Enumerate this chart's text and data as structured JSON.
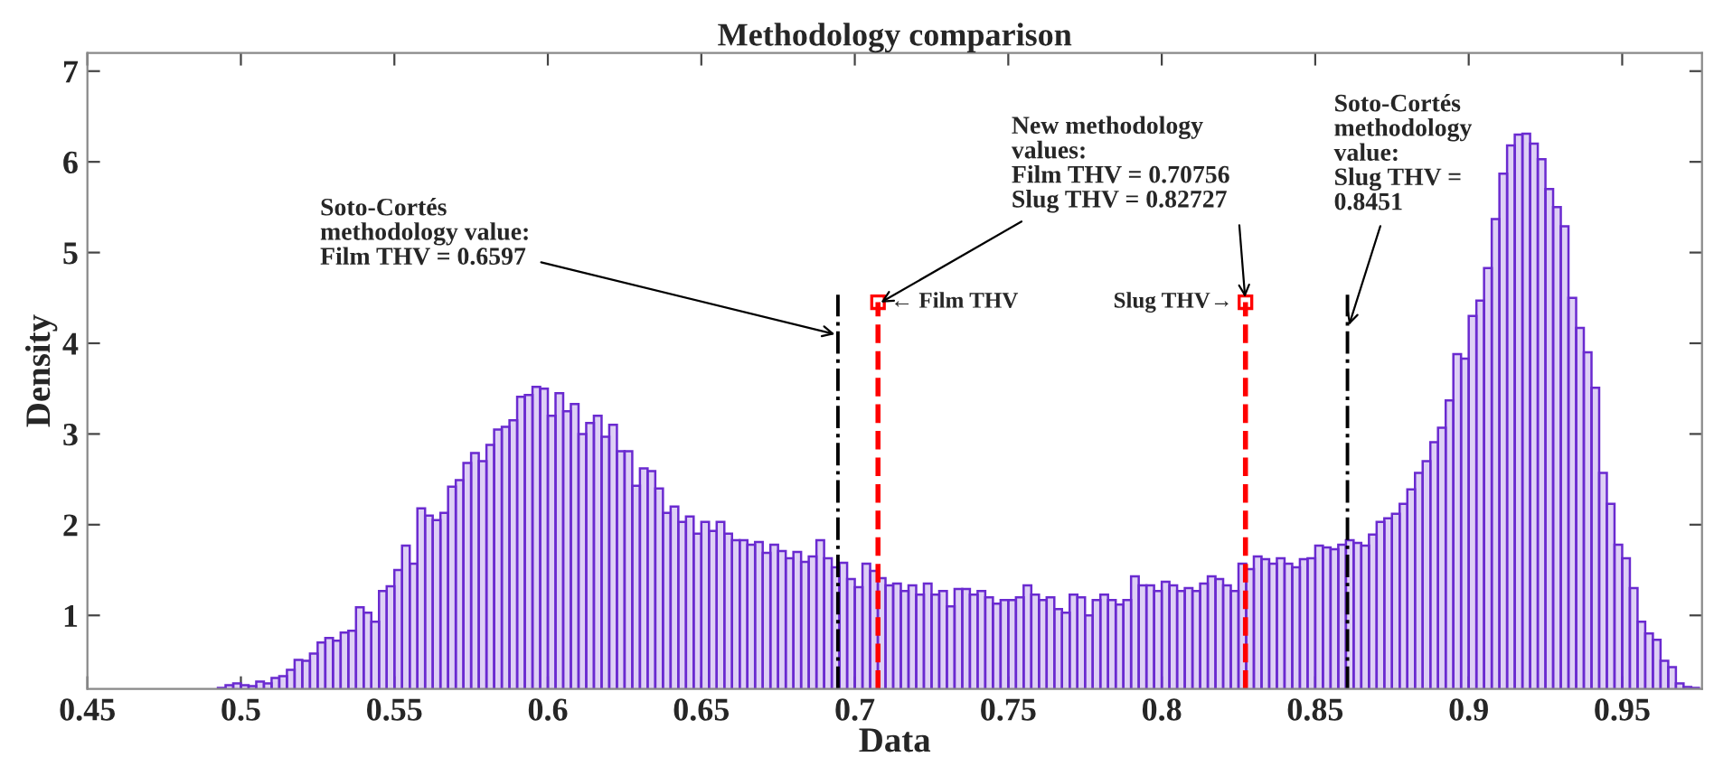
{
  "chart_data": {
    "type": "histogram",
    "title": "Methodology comparison",
    "xlabel": "Data",
    "ylabel": "Density",
    "color": "#6a2ad0",
    "bins": [
      0.4925,
      0.495,
      0.4975,
      0.5,
      0.5025,
      0.505,
      0.5075,
      0.51,
      0.5125,
      0.515,
      0.5175,
      0.52,
      0.5225,
      0.525,
      0.5275,
      0.53,
      0.5325,
      0.535,
      0.5375,
      0.54,
      0.5425,
      0.545,
      0.5475,
      0.55,
      0.5525,
      0.555,
      0.5575,
      0.56,
      0.5625,
      0.565,
      0.5675,
      0.57,
      0.5725,
      0.575,
      0.5775,
      0.58,
      0.5825,
      0.585,
      0.5875,
      0.59,
      0.5925,
      0.595,
      0.5975,
      0.6,
      0.6025,
      0.605,
      0.6075,
      0.61,
      0.6125,
      0.615,
      0.6175,
      0.62,
      0.6225,
      0.625,
      0.6275,
      0.63,
      0.6325,
      0.635,
      0.6375,
      0.64,
      0.6425,
      0.645,
      0.6475,
      0.65,
      0.6525,
      0.655,
      0.6575,
      0.66,
      0.6625,
      0.665,
      0.6675,
      0.67,
      0.6725,
      0.675,
      0.6775,
      0.68,
      0.6825,
      0.685,
      0.6875,
      0.69,
      0.6925,
      0.695,
      0.6975,
      0.7,
      0.7025,
      0.705,
      0.7075,
      0.71,
      0.7125,
      0.715,
      0.7175,
      0.72,
      0.7225,
      0.725,
      0.7275,
      0.73,
      0.7325,
      0.735,
      0.7375,
      0.74,
      0.7425,
      0.745,
      0.7475,
      0.75,
      0.7525,
      0.755,
      0.7575,
      0.76,
      0.7625,
      0.765,
      0.7675,
      0.77,
      0.7725,
      0.775,
      0.7775,
      0.78,
      0.7825,
      0.785,
      0.7875,
      0.79,
      0.7925,
      0.795,
      0.7975,
      0.8,
      0.8025,
      0.805,
      0.8075,
      0.81,
      0.8125,
      0.815,
      0.8175,
      0.82,
      0.8225,
      0.825,
      0.8275,
      0.83,
      0.8325,
      0.835,
      0.8375,
      0.84,
      0.8425,
      0.845,
      0.8475,
      0.85,
      0.8525,
      0.855,
      0.8575,
      0.86,
      0.8625,
      0.865,
      0.8675,
      0.87,
      0.8725,
      0.875,
      0.8775,
      0.88,
      0.8825,
      0.885,
      0.8875,
      0.89,
      0.8925,
      0.895,
      0.8975,
      0.9,
      0.9025,
      0.905,
      0.9075,
      0.91,
      0.9125,
      0.915,
      0.9175,
      0.92,
      0.9225,
      0.925,
      0.9275,
      0.93,
      0.9325,
      0.935,
      0.9375,
      0.94,
      0.9425,
      0.945,
      0.9475,
      0.95,
      0.9525,
      0.955,
      0.9575,
      0.96,
      0.9625,
      0.965,
      0.9675,
      0.97,
      0.9725,
      0.975
    ],
    "values": [
      0.2,
      0.23,
      0.25,
      0.23,
      0.22,
      0.27,
      0.25,
      0.31,
      0.33,
      0.4,
      0.51,
      0.5,
      0.58,
      0.7,
      0.75,
      0.72,
      0.81,
      0.83,
      1.09,
      1.03,
      0.93,
      1.27,
      1.32,
      1.5,
      1.77,
      1.57,
      2.18,
      2.1,
      2.05,
      2.13,
      2.42,
      2.49,
      2.68,
      2.79,
      2.7,
      2.88,
      3.05,
      3.08,
      3.15,
      3.41,
      3.43,
      3.52,
      3.5,
      3.2,
      3.45,
      3.25,
      3.33,
      3.0,
      3.12,
      3.2,
      2.97,
      3.1,
      2.81,
      2.81,
      2.43,
      2.62,
      2.59,
      2.4,
      2.13,
      2.2,
      2.03,
      2.09,
      1.9,
      2.03,
      1.93,
      2.03,
      1.9,
      1.83,
      1.83,
      1.78,
      1.81,
      1.69,
      1.78,
      1.71,
      1.63,
      1.7,
      1.59,
      1.65,
      1.83,
      1.63,
      1.53,
      1.58,
      1.4,
      1.31,
      1.57,
      1.49,
      1.41,
      1.33,
      1.35,
      1.27,
      1.33,
      1.23,
      1.35,
      1.23,
      1.27,
      1.1,
      1.29,
      1.29,
      1.23,
      1.27,
      1.2,
      1.13,
      1.17,
      1.17,
      1.2,
      1.33,
      1.23,
      1.17,
      1.2,
      1.07,
      1.03,
      1.23,
      1.2,
      1.0,
      1.17,
      1.23,
      1.17,
      1.12,
      1.17,
      1.43,
      1.33,
      1.33,
      1.27,
      1.37,
      1.33,
      1.27,
      1.3,
      1.27,
      1.35,
      1.43,
      1.4,
      1.33,
      1.27,
      1.57,
      1.51,
      1.65,
      1.62,
      1.57,
      1.63,
      1.57,
      1.53,
      1.62,
      1.63,
      1.77,
      1.75,
      1.73,
      1.78,
      1.83,
      1.8,
      1.77,
      1.89,
      2.03,
      2.07,
      2.12,
      2.23,
      2.39,
      2.57,
      2.7,
      2.91,
      3.07,
      3.37,
      3.88,
      3.83,
      4.3,
      4.47,
      4.83,
      5.37,
      5.87,
      6.18,
      6.3,
      6.31,
      6.2,
      6.03,
      5.7,
      5.5,
      5.29,
      4.5,
      4.17,
      3.9,
      3.51,
      2.57,
      2.23,
      1.78,
      1.63,
      1.3,
      0.93,
      0.8,
      0.73,
      0.5,
      0.43,
      0.25,
      0.21,
      0.2
    ],
    "xlim": [
      0.45,
      0.976
    ],
    "ylim": [
      0.19,
      7.2
    ],
    "xticks": [
      0.45,
      0.5,
      0.55,
      0.6,
      0.65,
      0.7,
      0.75,
      0.8,
      0.85,
      0.9,
      0.95
    ],
    "yticks": [
      1,
      2,
      3,
      4,
      5,
      6,
      7
    ],
    "grid": false,
    "legend": false,
    "ref_lines": [
      {
        "axis": "x",
        "value": 0.6945,
        "color": "#000000",
        "line_style": "dashdot"
      },
      {
        "axis": "x",
        "value": 0.70756,
        "label": "← Film THV",
        "color": "#ff0000",
        "line_style": "dashed"
      },
      {
        "axis": "x",
        "value": 0.82727,
        "label": "Slug THV→",
        "color": "#ff0000",
        "line_style": "dashed"
      },
      {
        "axis": "x",
        "value": 0.8605,
        "color": "#000000",
        "line_style": "dashdot"
      }
    ],
    "annotations": [
      {
        "text": "Soto-Cortés\nmethodology value:\nFilm THV = 0.6597",
        "x": 0.6935,
        "y": 4.1
      },
      {
        "text": "New methodology\nvalues:\nFilm THV = 0.70756\nSlug THV = 0.82727",
        "x": 0.7085,
        "y": 4.45
      },
      {
        "text": "Soto-Cortés\nmethodology\nvalue:\nSlug THV =\n0.8451",
        "x": 0.861,
        "y": 4.2
      }
    ]
  }
}
